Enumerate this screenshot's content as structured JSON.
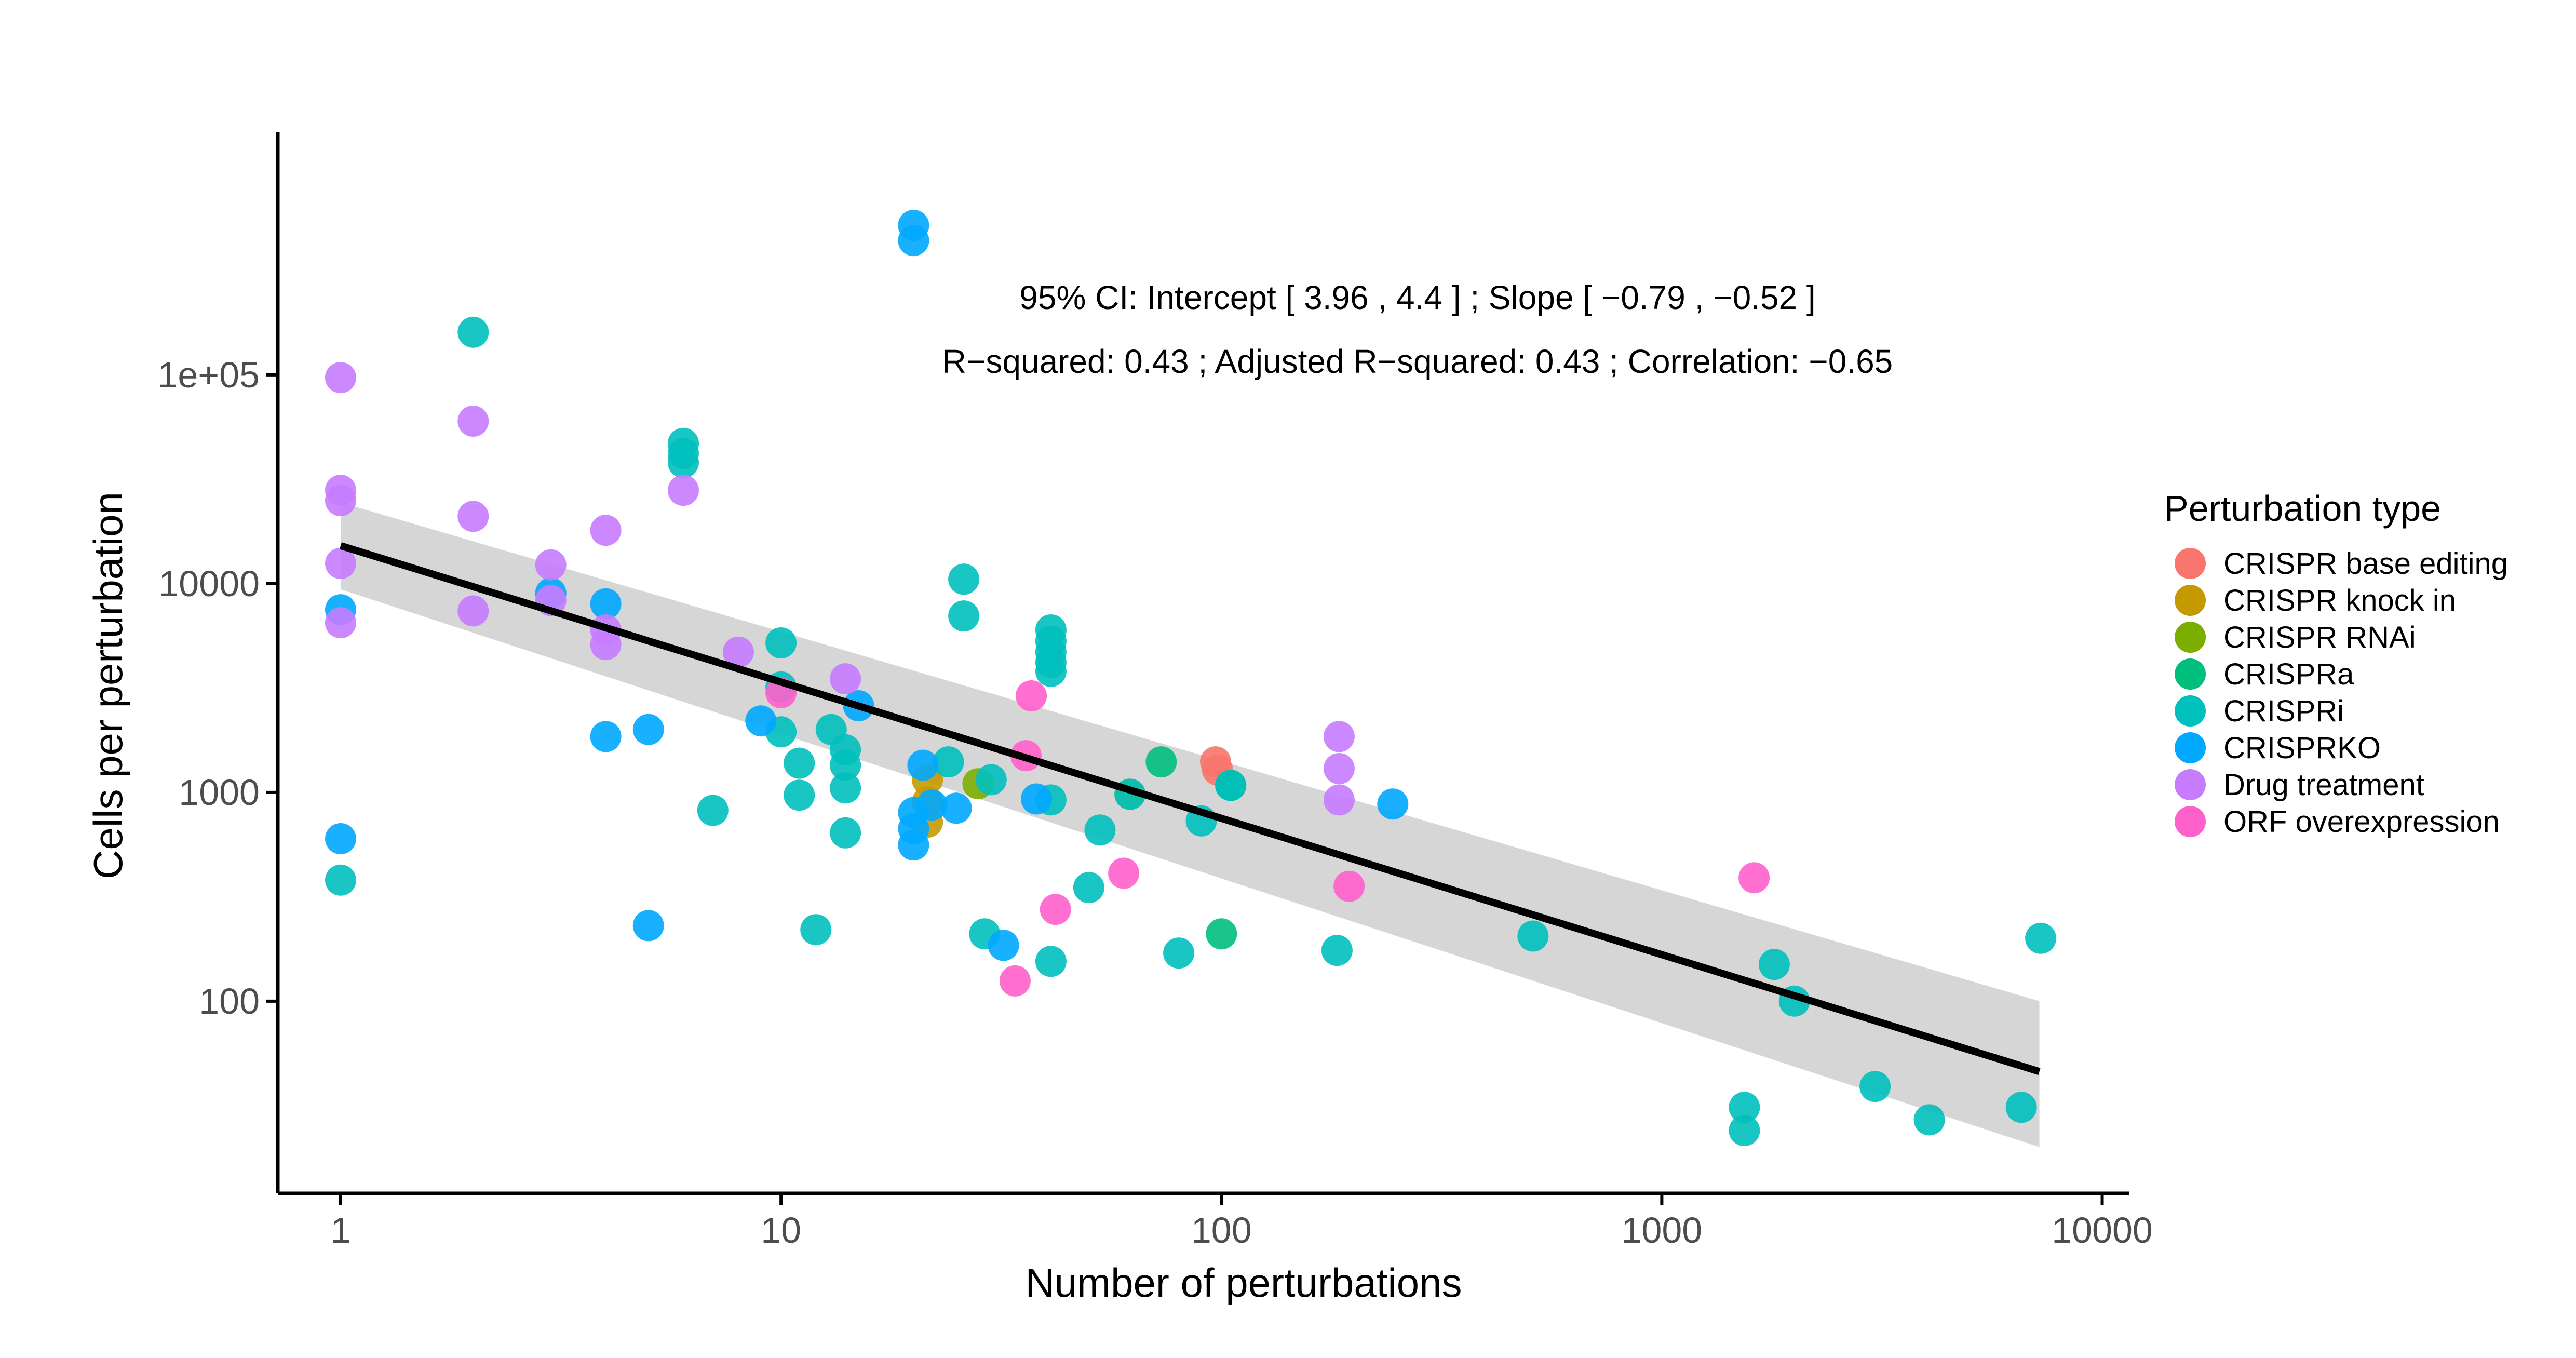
{
  "chart_data": {
    "type": "scatter",
    "xlabel": "Number of perturbations",
    "ylabel": "Cells per perturbation",
    "xscale": "log10",
    "yscale": "log10",
    "xlim": [
      0.72,
      11500
    ],
    "ylim": [
      12,
      1450000
    ],
    "xticks": [
      1,
      10,
      100,
      1000,
      10000
    ],
    "xtick_labels": [
      "1",
      "10",
      "100",
      "1000",
      "10000"
    ],
    "yticks": [
      100,
      1000,
      10000,
      100000
    ],
    "ytick_labels": [
      "100",
      "1000",
      "10000",
      "1e+05"
    ],
    "grid": false,
    "annotations": [
      "95% CI: Intercept [ 3.96 , 4.4 ] ; Slope [ −0.79 , −0.52 ]",
      "R−squared: 0.43 ; Adjusted R−squared: 0.43 ; Correlation: −0.65"
    ],
    "regression": {
      "x_range": [
        1,
        7200
      ],
      "fit_y": [
        15200,
        46
      ],
      "ci_upper": [
        24500,
        100
      ],
      "ci_lower": [
        9400,
        20
      ],
      "color": "#000000",
      "band_color": "#bdbdbd"
    },
    "legend": {
      "title": "Perturbation type",
      "placement": "right"
    },
    "series": [
      {
        "name": "CRISPR base editing",
        "color": "#F8766D",
        "points": [
          [
            97,
            1400
          ],
          [
            98,
            1280
          ]
        ]
      },
      {
        "name": "CRISPR knock in",
        "color": "#C49A00",
        "points": [
          [
            21.5,
            1150
          ],
          [
            21.5,
            900
          ],
          [
            21.5,
            720
          ]
        ]
      },
      {
        "name": "CRISPR RNAi",
        "color": "#7CAE00",
        "points": [
          [
            28,
            1100
          ],
          [
            62,
            980
          ]
        ]
      },
      {
        "name": "CRISPRa",
        "color": "#00BF7D",
        "points": [
          [
            73,
            1400
          ],
          [
            105,
            1080
          ],
          [
            100,
            210
          ]
        ]
      },
      {
        "name": "CRISPRi",
        "color": "#00C0BC",
        "points": [
          [
            2,
            160000
          ],
          [
            6,
            47000
          ],
          [
            6,
            42000
          ],
          [
            6,
            38000
          ],
          [
            1,
            380
          ],
          [
            7,
            820
          ],
          [
            10,
            5200
          ],
          [
            10,
            3200
          ],
          [
            10,
            1950
          ],
          [
            11,
            1380
          ],
          [
            11,
            970
          ],
          [
            12,
            220
          ],
          [
            13,
            2000
          ],
          [
            14,
            1600
          ],
          [
            14,
            1350
          ],
          [
            14,
            1050
          ],
          [
            14,
            640
          ],
          [
            24,
            1400
          ],
          [
            26,
            10500
          ],
          [
            26,
            7000
          ],
          [
            29,
            210
          ],
          [
            30,
            1150
          ],
          [
            41,
            6000
          ],
          [
            41,
            5300
          ],
          [
            41,
            4700
          ],
          [
            41,
            4200
          ],
          [
            41,
            3800
          ],
          [
            41,
            920
          ],
          [
            41,
            155
          ],
          [
            50,
            350
          ],
          [
            53,
            660
          ],
          [
            62,
            980
          ],
          [
            80,
            170
          ],
          [
            90,
            730
          ],
          [
            105,
            1080
          ],
          [
            183,
            175
          ],
          [
            510,
            205
          ],
          [
            1540,
            31
          ],
          [
            1540,
            24
          ],
          [
            1800,
            150
          ],
          [
            2000,
            100
          ],
          [
            3050,
            39
          ],
          [
            4050,
            27
          ],
          [
            6550,
            31
          ],
          [
            7250,
            200
          ]
        ]
      },
      {
        "name": "CRISPRKO",
        "color": "#00A9FF",
        "points": [
          [
            20,
            520000
          ],
          [
            20,
            440000
          ],
          [
            1,
            7500
          ],
          [
            1,
            600
          ],
          [
            3,
            9000
          ],
          [
            4,
            8000
          ],
          [
            4,
            1850
          ],
          [
            5,
            2000
          ],
          [
            5,
            230
          ],
          [
            9,
            2200
          ],
          [
            15,
            2600
          ],
          [
            20,
            800
          ],
          [
            20,
            670
          ],
          [
            20,
            560
          ],
          [
            21,
            1350
          ],
          [
            22,
            870
          ],
          [
            25,
            840
          ],
          [
            32,
            185
          ],
          [
            38,
            930
          ],
          [
            245,
            880
          ]
        ]
      },
      {
        "name": "Drug treatment",
        "color": "#C77CFF",
        "points": [
          [
            1,
            97000
          ],
          [
            1,
            28000
          ],
          [
            1,
            25000
          ],
          [
            1,
            12500
          ],
          [
            1,
            6500
          ],
          [
            2,
            60000
          ],
          [
            2,
            21000
          ],
          [
            2,
            7400
          ],
          [
            3,
            12300
          ],
          [
            3,
            8300
          ],
          [
            4,
            18000
          ],
          [
            4,
            6000
          ],
          [
            4,
            5100
          ],
          [
            6,
            28000
          ],
          [
            8,
            4700
          ],
          [
            14,
            3500
          ],
          [
            185,
            1850
          ],
          [
            185,
            1300
          ],
          [
            185,
            920
          ]
        ]
      },
      {
        "name": "ORF overexpression",
        "color": "#FF61CC",
        "points": [
          [
            10,
            3000
          ],
          [
            36,
            1500
          ],
          [
            37,
            2900
          ],
          [
            34,
            125
          ],
          [
            42,
            275
          ],
          [
            60,
            410
          ],
          [
            195,
            355
          ],
          [
            1620,
            390
          ]
        ]
      }
    ]
  }
}
